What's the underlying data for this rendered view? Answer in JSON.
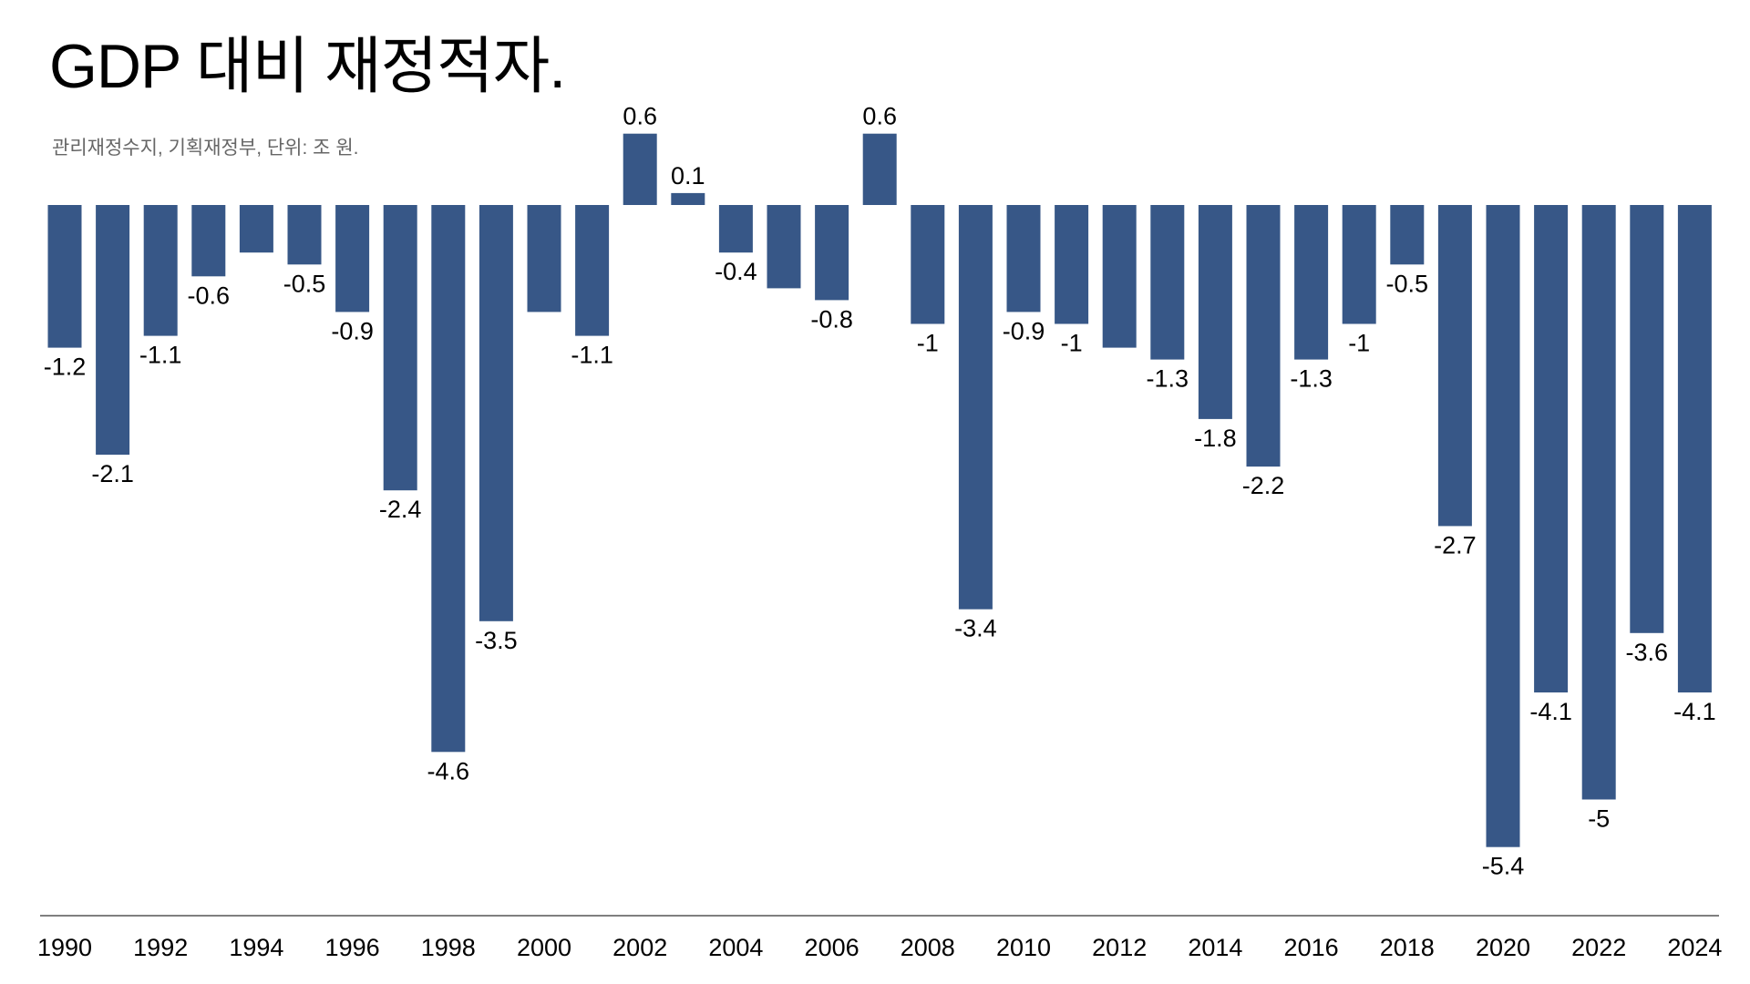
{
  "title": "GDP 대비 재정적자.",
  "subtitle": "관리재정수지, 기획재정부, 단위: 조 원.",
  "colors": {
    "bar": "#375787",
    "axis": "#555555"
  },
  "chart_data": {
    "type": "bar",
    "title": "GDP 대비 재정적자.",
    "subtitle": "관리재정수지, 기획재정부, 단위: 조 원.",
    "xlabel": "",
    "ylabel": "",
    "grid": false,
    "legend": "none",
    "ylim": [
      -5.4,
      0.6
    ],
    "categories": [
      "1990",
      "1991",
      "1992",
      "1993",
      "1994",
      "1995",
      "1996",
      "1997",
      "1998",
      "1999",
      "2000",
      "2001",
      "2002",
      "2003",
      "2004",
      "2005",
      "2006",
      "2007",
      "2008",
      "2009",
      "2010",
      "2011",
      "2012",
      "2013",
      "2014",
      "2015",
      "2016",
      "2017",
      "2018",
      "2019",
      "2020",
      "2021",
      "2022",
      "2023",
      "2024"
    ],
    "values": [
      -1.2,
      -2.1,
      -1.1,
      -0.6,
      -0.4,
      -0.5,
      -0.9,
      -2.4,
      -4.6,
      -3.5,
      -0.9,
      -1.1,
      0.6,
      0.1,
      -0.4,
      -0.7,
      -0.8,
      0.6,
      -1,
      -3.4,
      -0.9,
      -1,
      -1.2,
      -1.3,
      -1.8,
      -2.2,
      -1.3,
      -1,
      -0.5,
      -2.7,
      -5.4,
      -4.1,
      -5,
      -3.6,
      -4.1
    ],
    "data_labels": [
      "-1.2",
      "-2.1",
      "-1.1",
      "-0.6",
      "",
      "-0.5",
      "-0.9",
      "-2.4",
      "-4.6",
      "-3.5",
      "",
      "-1.1",
      "0.6",
      "0.1",
      "-0.4",
      "",
      "-0.8",
      "0.6",
      "-1",
      "-3.4",
      "-0.9",
      "-1",
      "",
      "-1.3",
      "-1.8",
      "-2.2",
      "-1.3",
      "-1",
      "-0.5",
      "-2.7",
      "-5.4",
      "-4.1",
      "-5",
      "-3.6",
      "-4.1"
    ],
    "tick_labels": [
      "1990",
      "1992",
      "1994",
      "1996",
      "1998",
      "2000",
      "2002",
      "2004",
      "2006",
      "2008",
      "2010",
      "2012",
      "2014",
      "2016",
      "2018",
      "2020",
      "2022",
      "2024"
    ]
  }
}
